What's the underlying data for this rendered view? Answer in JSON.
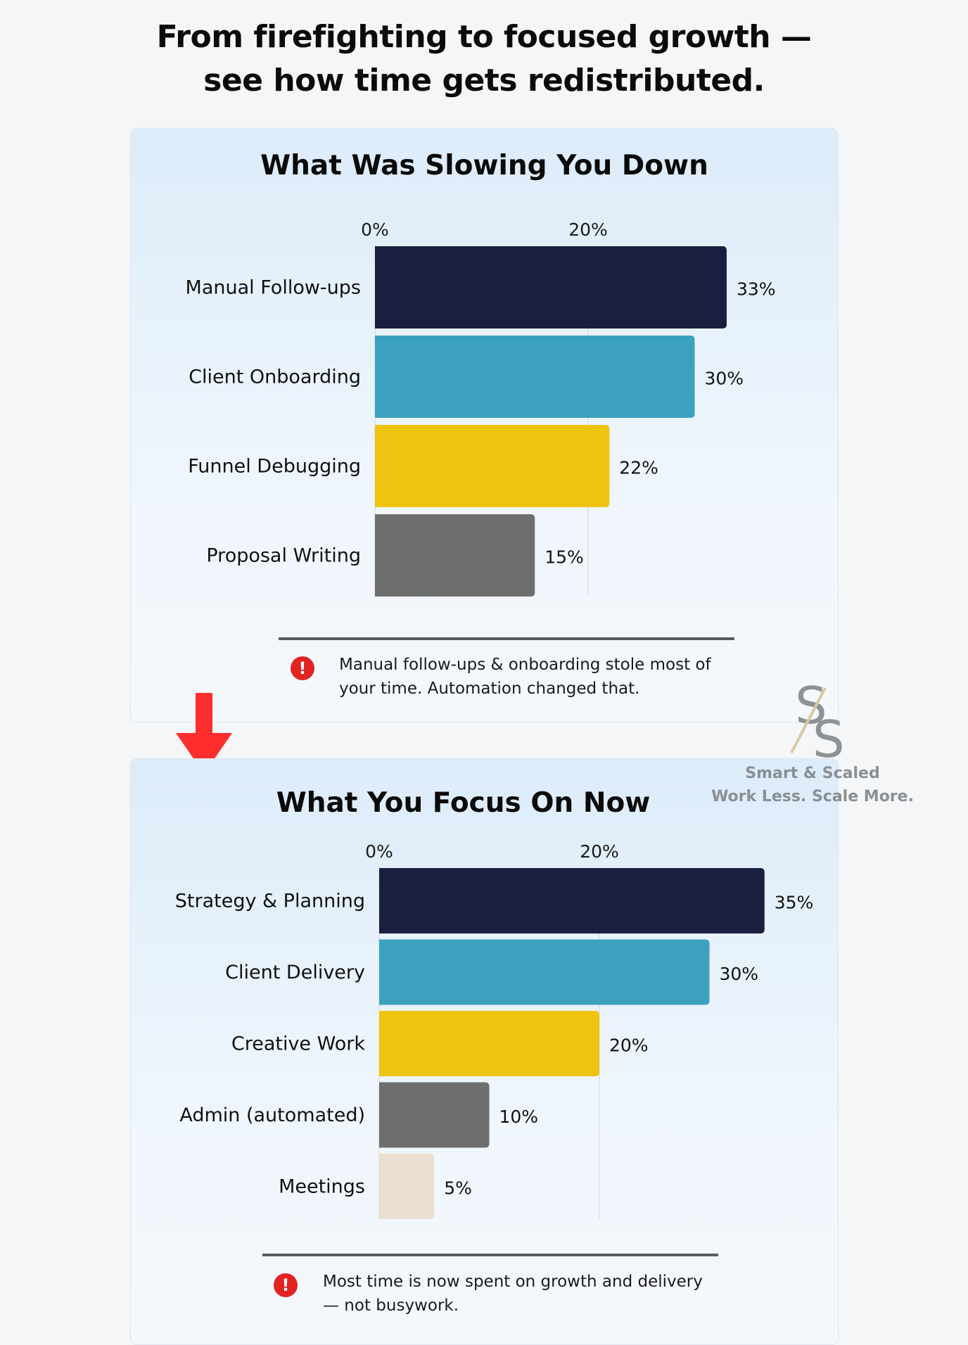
{
  "headline": {
    "line1": "From firefighting to focused growth —",
    "line2": "see how time gets redistributed."
  },
  "chart_data": [
    {
      "type": "bar",
      "orientation": "horizontal",
      "title": "What Was Slowing You Down",
      "categories": [
        "Manual Follow-ups",
        "Client Onboarding",
        "Funnel Debugging",
        "Proposal Writing"
      ],
      "values": [
        33,
        30,
        22,
        15
      ],
      "value_labels": [
        "33%",
        "30%",
        "22%",
        "15%"
      ],
      "colors": [
        "#1b1f3f",
        "#3ca1bf",
        "#eec40f",
        "#6e6e6e"
      ],
      "ticks": [
        0,
        20
      ],
      "tick_labels": [
        "0%",
        "20%"
      ],
      "xlim": [
        0,
        40
      ],
      "grid": true,
      "note": "Manual follow-ups & onboarding stole most of your time. Automation changed that."
    },
    {
      "type": "bar",
      "orientation": "horizontal",
      "title": "What You Focus On Now",
      "categories": [
        "Strategy & Planning",
        "Client Delivery",
        "Creative Work",
        "Admin (automated)",
        "Meetings"
      ],
      "values": [
        35,
        30,
        20,
        10,
        5
      ],
      "value_labels": [
        "35%",
        "30%",
        "20%",
        "10%",
        "5%"
      ],
      "colors": [
        "#1b1f3f",
        "#3ca1bf",
        "#eec40f",
        "#6e6e6e",
        "#eadfd0"
      ],
      "ticks": [
        0,
        20
      ],
      "tick_labels": [
        "0%",
        "20%"
      ],
      "xlim": [
        0,
        40
      ],
      "grid": true,
      "note": "Most time is now spent on growth and delivery — not busywork."
    }
  ],
  "notes": [
    {
      "line1": "Manual follow-ups & onboarding stole most of",
      "line2": "your time. Automation changed that."
    },
    {
      "line1": "Most time is now spent on growth and delivery",
      "line2": "— not busywork."
    }
  ],
  "icons": {
    "alert": "exclamation-circle-icon",
    "arrow": "arrow-down-icon"
  },
  "colors": {
    "alert": "#e32222",
    "arrow": "#ff2d2d",
    "divider": "#5a5a5a"
  },
  "watermark": {
    "brand": "Smart & Scaled",
    "tagline": "Work Less. Scale More."
  }
}
